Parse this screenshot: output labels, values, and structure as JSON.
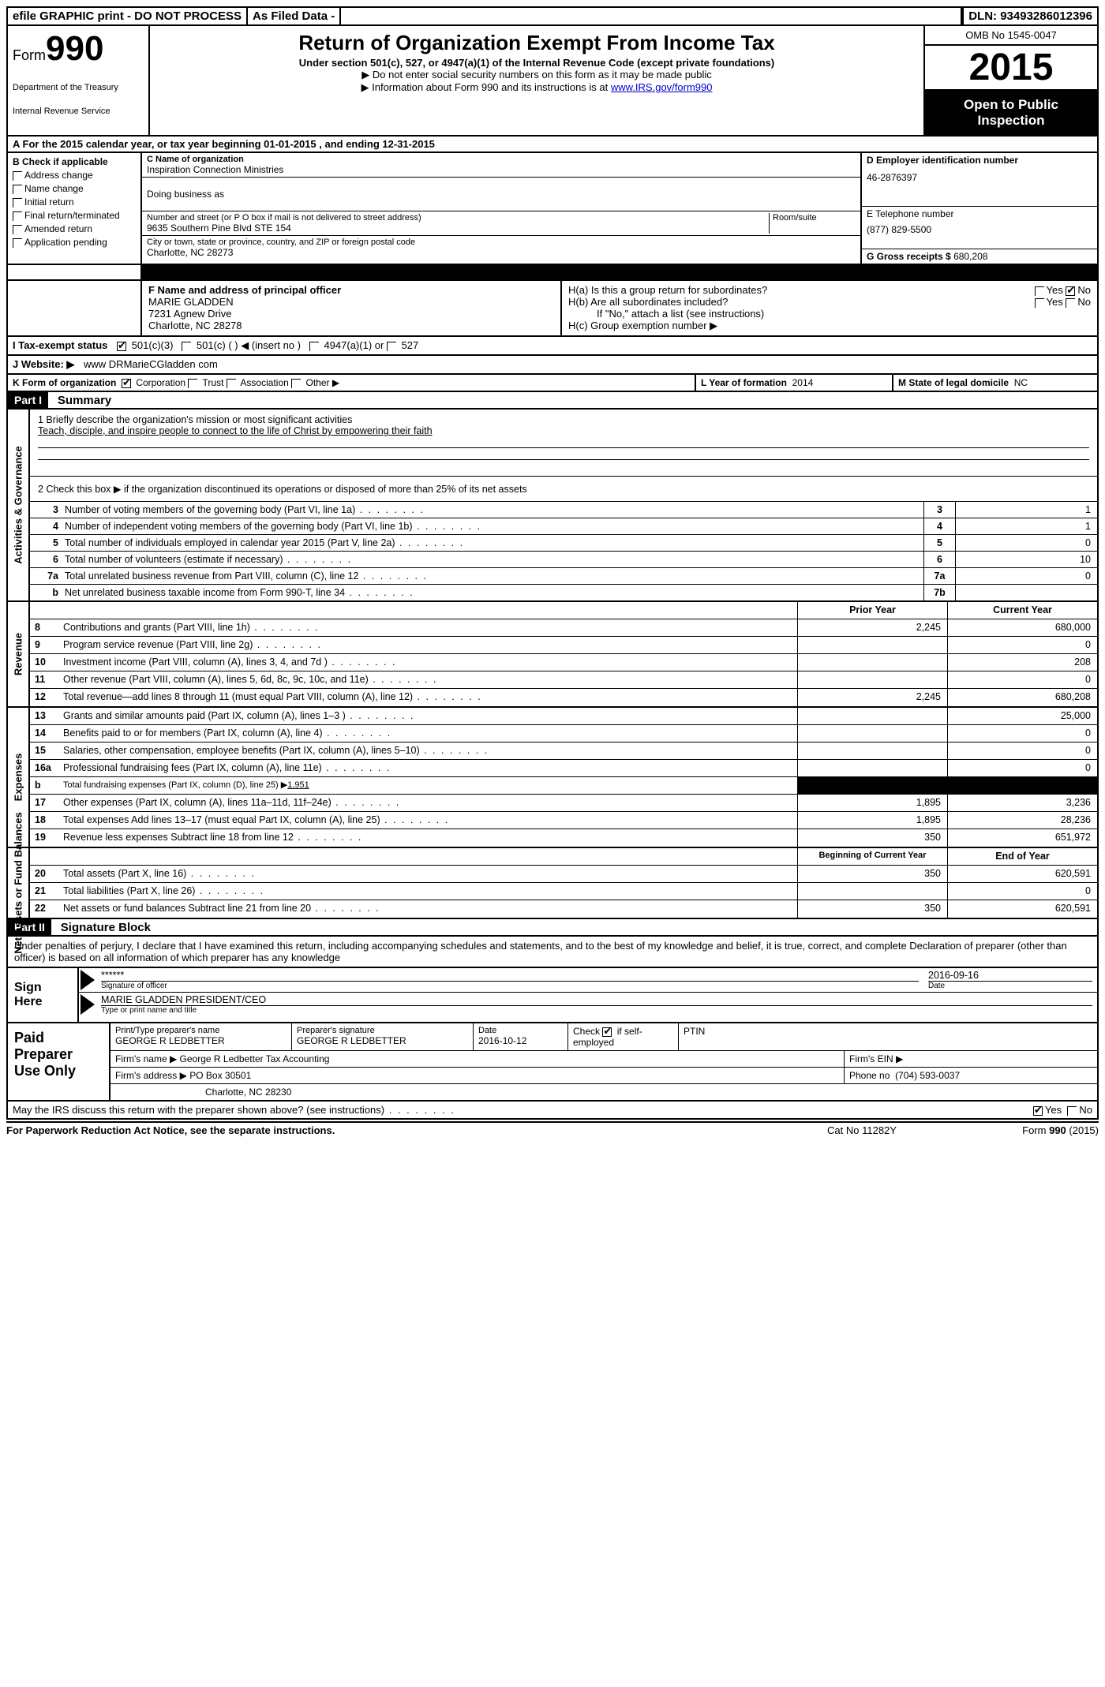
{
  "topbar": {
    "efile": "efile GRAPHIC print - DO NOT PROCESS",
    "asfiled": "As Filed Data -",
    "dln": "DLN: 93493286012396"
  },
  "header": {
    "form_word": "Form",
    "form_num": "990",
    "dept1": "Department of the Treasury",
    "dept2": "Internal Revenue Service",
    "title": "Return of Organization Exempt From Income Tax",
    "sub": "Under section 501(c), 527, or 4947(a)(1) of the Internal Revenue Code (except private foundations)",
    "note1": "▶ Do not enter social security numbers on this form as it may be made public",
    "note2_a": "▶ Information about Form 990 and its instructions is at ",
    "note2_link": "www.IRS.gov/form990",
    "omb": "OMB No 1545-0047",
    "year": "2015",
    "open1": "Open to Public",
    "open2": "Inspection"
  },
  "rowA": "A   For the 2015 calendar year, or tax year beginning 01-01-2015    , and ending 12-31-2015",
  "colB": {
    "hdr": "B Check if applicable",
    "items": [
      "Address change",
      "Name change",
      "Initial return",
      "Final return/terminated",
      "Amended return",
      "Application pending"
    ]
  },
  "colC": {
    "name_lbl": "C Name of organization",
    "name": "Inspiration Connection Ministries",
    "dba_lbl": "Doing business as",
    "street_lbl": "Number and street (or P O  box if mail is not delivered to street address)",
    "room_lbl": "Room/suite",
    "street": "9635 Southern Pine Blvd STE 154",
    "city_lbl": "City or town, state or province, country, and ZIP or foreign postal code",
    "city": "Charlotte, NC  28273"
  },
  "colD": {
    "ein_lbl": "D Employer identification number",
    "ein": "46-2876397",
    "phone_lbl": "E Telephone number",
    "phone": "(877) 829-5500",
    "gross_lbl": "G Gross receipts $",
    "gross": "680,208"
  },
  "colF": {
    "lbl": "F    Name and address of principal officer",
    "name": "MARIE GLADDEN",
    "addr1": "7231 Agnew Drive",
    "addr2": "Charlotte, NC  28278"
  },
  "colH": {
    "ha": "H(a)  Is this a group return for subordinates?",
    "hb": "H(b)  Are all subordinates included?",
    "hb_note": "If \"No,\" attach a list  (see instructions)",
    "hc": "H(c)  Group exemption number ▶",
    "yes": "Yes",
    "no": "No"
  },
  "rowI": {
    "lbl": "I   Tax-exempt status",
    "o1": "501(c)(3)",
    "o2": "501(c) (  ) ◀ (insert no )",
    "o3": "4947(a)(1) or",
    "o4": "527"
  },
  "rowJ": {
    "lbl": "J   Website: ▶",
    "val": "www DRMarieCGladden com"
  },
  "rowK": {
    "left_lbl": "K Form of organization",
    "corp": "Corporation",
    "trust": "Trust",
    "assoc": "Association",
    "other": "Other ▶",
    "mid_lbl": "L Year of formation",
    "mid_val": "2014",
    "right_lbl": "M State of legal domicile",
    "right_val": "NC"
  },
  "partI": {
    "hdr": "Part I",
    "title": "Summary"
  },
  "summary": {
    "gov_label": "Activities & Governance",
    "l1_lbl": "1 Briefly describe the organization's mission or most significant activities",
    "l1_txt": "Teach, disciple, and inspire people to connect to the life of Christ by empowering their faith",
    "l2": "2  Check this box ▶     if the organization discontinued its operations or disposed of more than 25% of its net assets",
    "rows": [
      {
        "n": "3",
        "t": "Number of voting members of the governing body (Part VI, line 1a)",
        "b": "3",
        "v": "1"
      },
      {
        "n": "4",
        "t": "Number of independent voting members of the governing body (Part VI, line 1b)",
        "b": "4",
        "v": "1"
      },
      {
        "n": "5",
        "t": "Total number of individuals employed in calendar year 2015 (Part V, line 2a)",
        "b": "5",
        "v": "0"
      },
      {
        "n": "6",
        "t": "Total number of volunteers (estimate if necessary)",
        "b": "6",
        "v": "10"
      },
      {
        "n": "7a",
        "t": "Total unrelated business revenue from Part VIII, column (C), line 12",
        "b": "7a",
        "v": "0"
      },
      {
        "n": "b",
        "t": "Net unrelated business taxable income from Form 990-T, line 34",
        "b": "7b",
        "v": ""
      }
    ]
  },
  "revenue": {
    "label": "Revenue",
    "hdr_prior": "Prior Year",
    "hdr_curr": "Current Year",
    "rows": [
      {
        "n": "8",
        "t": "Contributions and grants (Part VIII, line 1h)",
        "c1": "2,245",
        "c2": "680,000"
      },
      {
        "n": "9",
        "t": "Program service revenue (Part VIII, line 2g)",
        "c1": "",
        "c2": "0"
      },
      {
        "n": "10",
        "t": "Investment income (Part VIII, column (A), lines 3, 4, and 7d )",
        "c1": "",
        "c2": "208"
      },
      {
        "n": "11",
        "t": "Other revenue (Part VIII, column (A), lines 5, 6d, 8c, 9c, 10c, and 11e)",
        "c1": "",
        "c2": "0"
      },
      {
        "n": "12",
        "t": "Total revenue—add lines 8 through 11 (must equal Part VIII, column (A), line 12)",
        "c1": "2,245",
        "c2": "680,208"
      }
    ]
  },
  "expenses": {
    "label": "Expenses",
    "rows": [
      {
        "n": "13",
        "t": "Grants and similar amounts paid (Part IX, column (A), lines 1–3 )",
        "c1": "",
        "c2": "25,000"
      },
      {
        "n": "14",
        "t": "Benefits paid to or for members (Part IX, column (A), line 4)",
        "c1": "",
        "c2": "0"
      },
      {
        "n": "15",
        "t": "Salaries, other compensation, employee benefits (Part IX, column (A), lines 5–10)",
        "c1": "",
        "c2": "0"
      },
      {
        "n": "16a",
        "t": "Professional fundraising fees (Part IX, column (A), line 11e)",
        "c1": "",
        "c2": "0"
      },
      {
        "n": "b",
        "t": "Total fundraising expenses (Part IX, column (D), line 25) ▶",
        "amt": "1,951",
        "black": true
      },
      {
        "n": "17",
        "t": "Other expenses (Part IX, column (A), lines 11a–11d, 11f–24e)",
        "c1": "1,895",
        "c2": "3,236"
      },
      {
        "n": "18",
        "t": "Total expenses  Add lines 13–17 (must equal Part IX, column (A), line 25)",
        "c1": "1,895",
        "c2": "28,236"
      },
      {
        "n": "19",
        "t": "Revenue less expenses  Subtract line 18 from line 12",
        "c1": "350",
        "c2": "651,972"
      }
    ]
  },
  "netassets": {
    "label": "Net Assets or Fund Balances",
    "hdr_beg": "Beginning of Current Year",
    "hdr_end": "End of Year",
    "rows": [
      {
        "n": "20",
        "t": "Total assets (Part X, line 16)",
        "c1": "350",
        "c2": "620,591"
      },
      {
        "n": "21",
        "t": "Total liabilities (Part X, line 26)",
        "c1": "",
        "c2": "0"
      },
      {
        "n": "22",
        "t": "Net assets or fund balances  Subtract line 21 from line 20",
        "c1": "350",
        "c2": "620,591"
      }
    ]
  },
  "partII": {
    "hdr": "Part II",
    "title": "Signature Block"
  },
  "sig_text": "Under penalties of perjury, I declare that I have examined this return, including accompanying schedules and statements, and to the best of my knowledge and belief, it is true, correct, and complete  Declaration of preparer (other than officer) is based on all information of which preparer has any knowledge",
  "sign": {
    "here": "Sign Here",
    "stars": "******",
    "sig_lbl": "Signature of officer",
    "date": "2016-09-16",
    "date_lbl": "Date",
    "name": "MARIE GLADDEN PRESIDENT/CEO",
    "name_lbl": "Type or print name and title"
  },
  "paid": {
    "here": "Paid Preparer Use Only",
    "r1": {
      "a_lbl": "Print/Type preparer's name",
      "a": "GEORGE R LEDBETTER",
      "b_lbl": "Preparer's signature",
      "b": "GEORGE R LEDBETTER",
      "c_lbl": "Date",
      "c": "2016-10-12",
      "d_lbl": "Check",
      "d2": "if self-employed",
      "e_lbl": "PTIN"
    },
    "r2": {
      "a_lbl": "Firm's name     ▶",
      "a": "George R Ledbetter Tax Accounting",
      "b_lbl": "Firm's EIN ▶"
    },
    "r3": {
      "a_lbl": "Firm's address ▶",
      "a": "PO Box 30501",
      "b_lbl": "Phone no",
      "b": "(704) 593-0037"
    },
    "r4": {
      "a": "Charlotte, NC  28230"
    }
  },
  "discuss": {
    "txt": "May the IRS discuss this return with the preparer shown above? (see instructions)",
    "yes": "Yes",
    "no": "No"
  },
  "footer": {
    "l": "For Paperwork Reduction Act Notice, see the separate instructions.",
    "m": "Cat No 11282Y",
    "r": "Form 990 (2015)"
  }
}
